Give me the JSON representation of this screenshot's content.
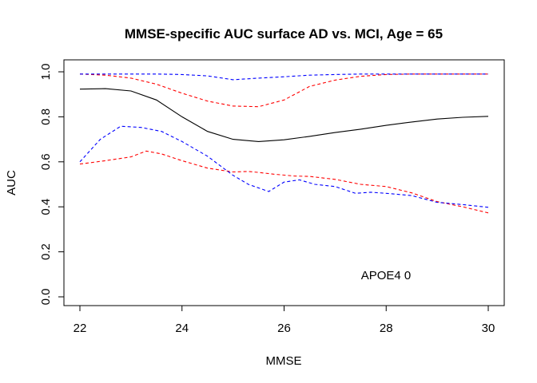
{
  "chart_data": {
    "type": "line",
    "title": "MMSE-specific AUC surface AD vs. MCI, Age = 65",
    "xlabel": "MMSE",
    "ylabel": "AUC",
    "xlim": [
      22,
      30
    ],
    "ylim": [
      0,
      1
    ],
    "xticks": [
      "22",
      "24",
      "26",
      "28",
      "30"
    ],
    "yticks": [
      "0.0",
      "0.2",
      "0.4",
      "0.6",
      "0.8",
      "1.0"
    ],
    "annotation": "APOE4 0",
    "grid": false,
    "legend": "none",
    "series": [
      {
        "color": "#000000",
        "style": "solid",
        "x": [
          22,
          22.5,
          23,
          23.5,
          24,
          24.5,
          25,
          25.5,
          26,
          26.5,
          27,
          27.5,
          28,
          28.5,
          29,
          29.5,
          30
        ],
        "values": [
          0.923,
          0.925,
          0.915,
          0.875,
          0.8,
          0.735,
          0.7,
          0.69,
          0.698,
          0.713,
          0.73,
          0.745,
          0.762,
          0.777,
          0.79,
          0.798,
          0.802
        ]
      },
      {
        "color": "#ff0000",
        "style": "dashed",
        "x": [
          22,
          22.5,
          23,
          23.5,
          24,
          24.5,
          25,
          25.5,
          26,
          26.5,
          27,
          27.5,
          28,
          28.5,
          29,
          29.5,
          30
        ],
        "values": [
          0.99,
          0.985,
          0.972,
          0.945,
          0.905,
          0.87,
          0.848,
          0.845,
          0.875,
          0.935,
          0.963,
          0.98,
          0.988,
          0.99,
          0.99,
          0.99,
          0.99
        ]
      },
      {
        "color": "#ff0000",
        "style": "dashed",
        "x": [
          22,
          22.5,
          23,
          23.3,
          23.6,
          24,
          24.5,
          25,
          25.3,
          25.5,
          25.8,
          26.2,
          26.5,
          27,
          27.5,
          28,
          28.5,
          29,
          29.5,
          30
        ],
        "values": [
          0.59,
          0.605,
          0.622,
          0.648,
          0.635,
          0.605,
          0.572,
          0.555,
          0.557,
          0.553,
          0.545,
          0.537,
          0.535,
          0.522,
          0.5,
          0.49,
          0.462,
          0.423,
          0.4,
          0.373
        ]
      },
      {
        "color": "#0000ff",
        "style": "dashed",
        "x": [
          22,
          22.5,
          23,
          23.5,
          24,
          24.5,
          25,
          25.5,
          26,
          26.5,
          27,
          27.5,
          28,
          28.5,
          29,
          29.5,
          30
        ],
        "values": [
          0.99,
          0.99,
          0.99,
          0.99,
          0.988,
          0.982,
          0.965,
          0.972,
          0.978,
          0.985,
          0.988,
          0.99,
          0.99,
          0.99,
          0.99,
          0.99,
          0.99
        ]
      },
      {
        "color": "#0000ff",
        "style": "dashed",
        "x": [
          22,
          22.4,
          22.8,
          23.2,
          23.6,
          24,
          24.5,
          25,
          25.3,
          25.7,
          26,
          26.3,
          26.6,
          27,
          27.4,
          27.7,
          28,
          28.5,
          29,
          29.5,
          30
        ],
        "values": [
          0.6,
          0.7,
          0.758,
          0.753,
          0.735,
          0.69,
          0.625,
          0.54,
          0.5,
          0.468,
          0.51,
          0.52,
          0.5,
          0.49,
          0.46,
          0.465,
          0.46,
          0.45,
          0.42,
          0.41,
          0.398
        ]
      }
    ]
  }
}
